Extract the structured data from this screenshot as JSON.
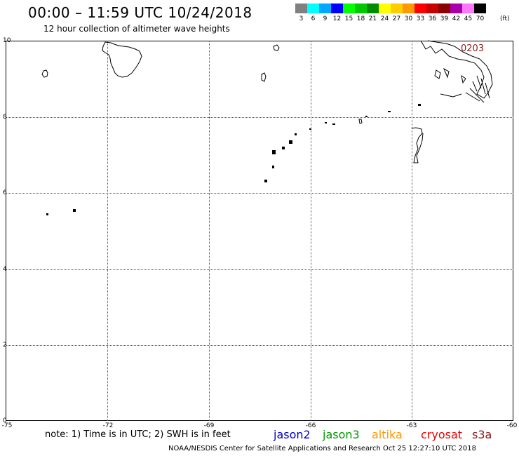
{
  "header": {
    "title": "00:00 – 11:59 UTC 10/24/2018",
    "subtitle": "12 hour collection of altimeter wave heights"
  },
  "legend": {
    "unit": "(ft)",
    "items": [
      {
        "label": "3",
        "color": "#808080"
      },
      {
        "label": "6",
        "color": "#00ffff"
      },
      {
        "label": "9",
        "color": "#00a8ff"
      },
      {
        "label": "12",
        "color": "#0000ff"
      },
      {
        "label": "15",
        "color": "#00ff00"
      },
      {
        "label": "18",
        "color": "#00c800"
      },
      {
        "label": "21",
        "color": "#008c00"
      },
      {
        "label": "24",
        "color": "#ffff00"
      },
      {
        "label": "27",
        "color": "#ffcc00"
      },
      {
        "label": "30",
        "color": "#ff9900"
      },
      {
        "label": "33",
        "color": "#ff0000"
      },
      {
        "label": "36",
        "color": "#c80000"
      },
      {
        "label": "39",
        "color": "#8b0000"
      },
      {
        "label": "42",
        "color": "#aa00aa"
      },
      {
        "label": "45",
        "color": "#ff77ff"
      },
      {
        "label": "70",
        "color": "#000000"
      }
    ]
  },
  "map": {
    "y_ticks": [
      "10",
      "8",
      "6",
      "4",
      "2",
      "0"
    ],
    "x_ticks": [
      "-75",
      "-72",
      "-69",
      "-66",
      "-63",
      "-60"
    ],
    "pass_label": "0203"
  },
  "footer": {
    "note": "note:  1) Time is in UTC;  2) SWH is in feet",
    "satellites": [
      {
        "name": "jason2",
        "color": "#0000cc"
      },
      {
        "name": "jason3",
        "color": "#009900"
      },
      {
        "name": "altika",
        "color": "#ff9900"
      },
      {
        "name": "cryosat",
        "color": "#ee0000"
      },
      {
        "name": "s3a",
        "color": "#8b1a1a"
      }
    ],
    "credit": "NOAA/NESDIS Center for Satellite Applications and Research     Oct 25 12:27:10 UTC 2018"
  }
}
